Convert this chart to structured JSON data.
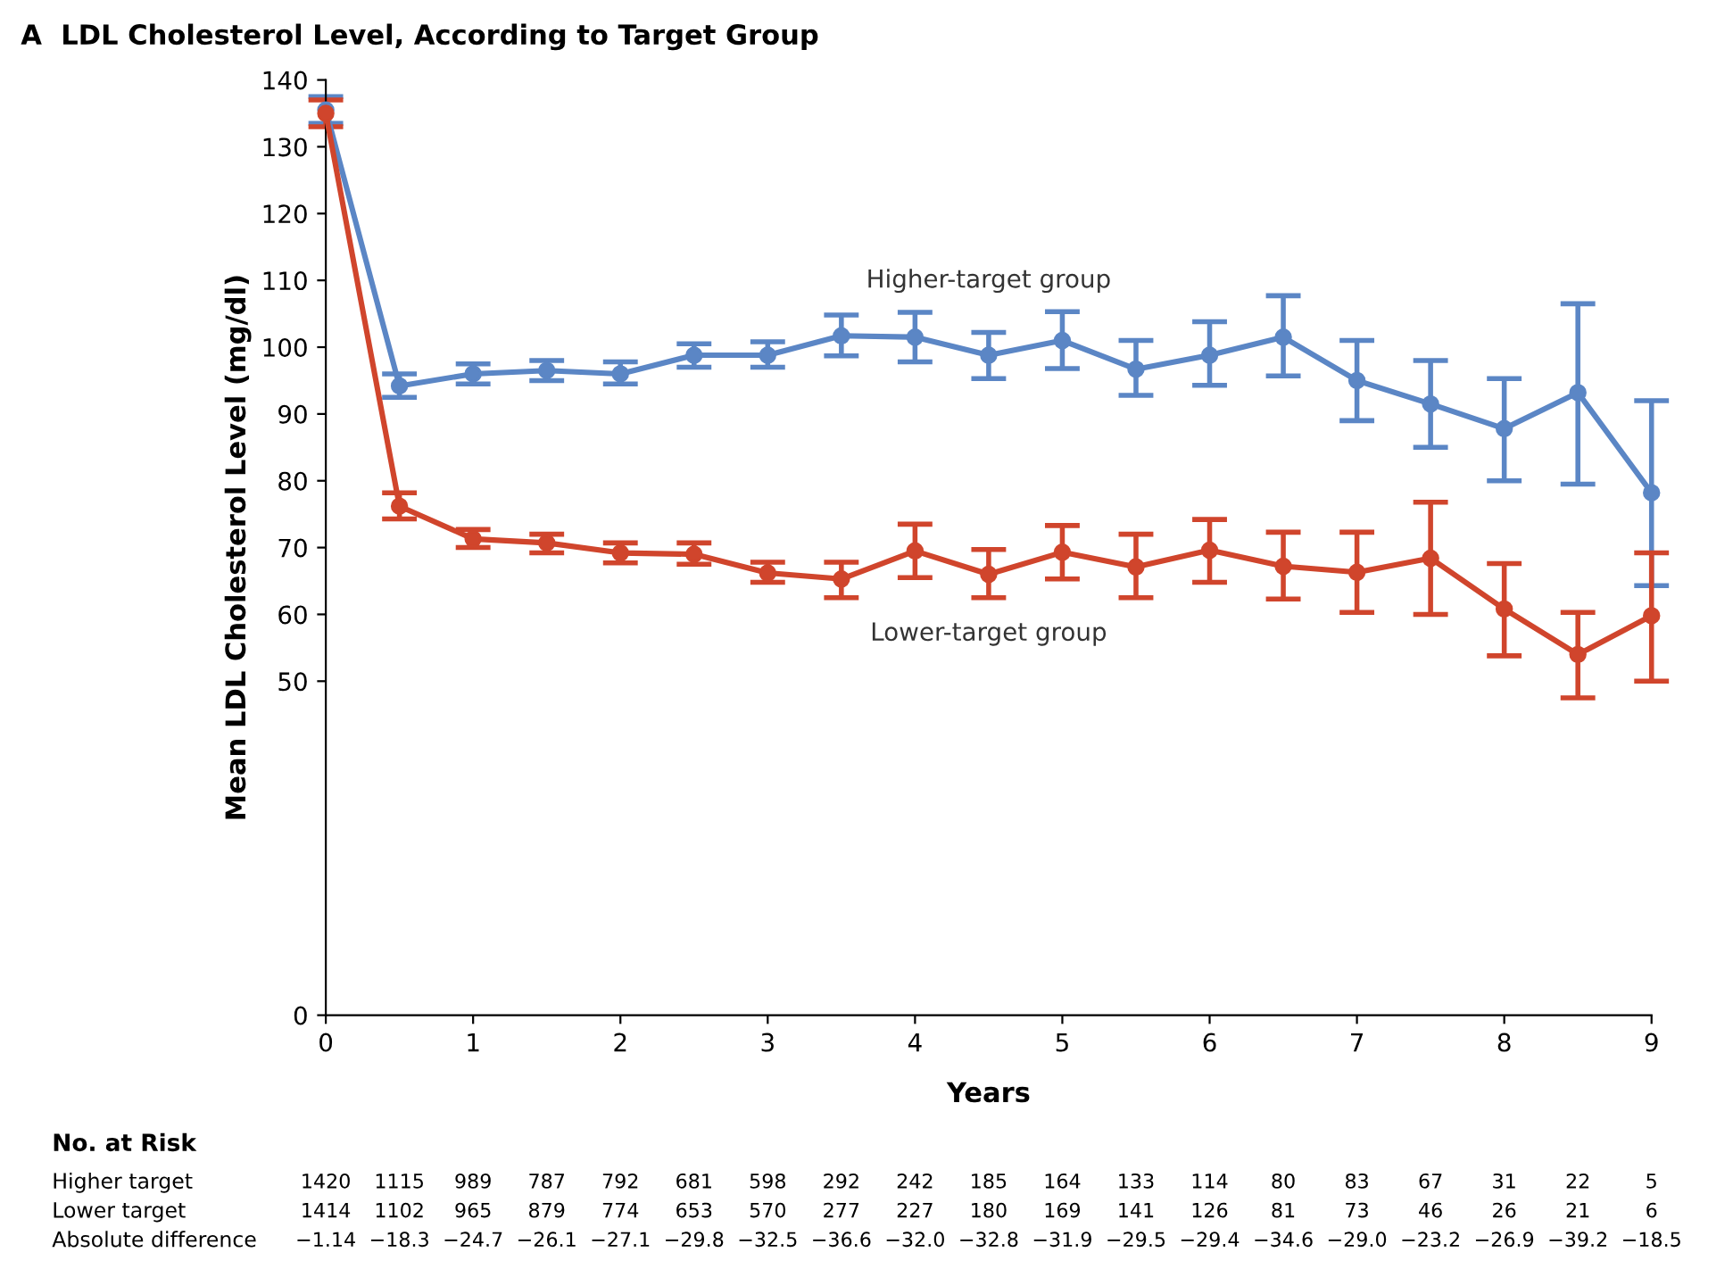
{
  "chart_data": {
    "type": "line",
    "title": "A  LDL Cholesterol Level, According to Target Group",
    "xlabel": "Years",
    "ylabel": "Mean LDL Cholesterol Level (mg/dl)",
    "x": [
      0,
      0.5,
      1,
      1.5,
      2,
      2.5,
      3,
      3.5,
      4,
      4.5,
      5,
      5.5,
      6,
      6.5,
      7,
      7.5,
      8,
      8.5,
      9
    ],
    "xlim": [
      0,
      9
    ],
    "xticks": [
      0,
      1,
      2,
      3,
      4,
      5,
      6,
      7,
      8,
      9
    ],
    "ylim": [
      0,
      140
    ],
    "yticks": [
      0,
      50,
      60,
      70,
      80,
      90,
      100,
      110,
      120,
      130,
      140
    ],
    "marker": "circle",
    "line_style": "solid",
    "grid": false,
    "legend": false,
    "series": [
      {
        "name": "Higher-target group",
        "color": "#5b86c5",
        "values": [
          135.5,
          94.2,
          96,
          96.5,
          96,
          98.8,
          98.8,
          101.7,
          101.5,
          98.8,
          101,
          96.7,
          98.8,
          101.5,
          95,
          91.5,
          87.8,
          93.2,
          78.2
        ],
        "errors": [
          [
            133.5,
            137.5
          ],
          [
            92.5,
            96
          ],
          [
            94.5,
            97.5
          ],
          [
            95,
            98
          ],
          [
            94.5,
            97.8
          ],
          [
            97,
            100.5
          ],
          [
            97,
            100.8
          ],
          [
            98.7,
            104.8
          ],
          [
            97.8,
            105.2
          ],
          [
            95.3,
            102.2
          ],
          [
            96.8,
            105.3
          ],
          [
            92.8,
            101
          ],
          [
            94.3,
            103.8
          ],
          [
            95.7,
            107.7
          ],
          [
            89,
            101
          ],
          [
            85,
            98
          ],
          [
            80,
            95.3
          ],
          [
            79.5,
            106.5
          ],
          [
            64.3,
            92
          ]
        ]
      },
      {
        "name": "Lower-target group",
        "color": "#d0452c",
        "values": [
          135,
          76.2,
          71.3,
          70.7,
          69.2,
          69,
          66.2,
          65.3,
          69.5,
          66,
          69.3,
          67.1,
          69.6,
          67.2,
          66.3,
          68.4,
          60.8,
          54,
          59.8
        ],
        "errors": [
          [
            133,
            137
          ],
          [
            74.3,
            78.2
          ],
          [
            70,
            72.7
          ],
          [
            69.2,
            72
          ],
          [
            67.7,
            70.7
          ],
          [
            67.5,
            70.7
          ],
          [
            64.8,
            67.8
          ],
          [
            62.5,
            67.8
          ],
          [
            65.5,
            73.5
          ],
          [
            62.5,
            69.7
          ],
          [
            65.3,
            73.3
          ],
          [
            62.5,
            72
          ],
          [
            64.8,
            74.2
          ],
          [
            62.3,
            72.3
          ],
          [
            60.3,
            72.3
          ],
          [
            60,
            76.8
          ],
          [
            53.8,
            67.6
          ],
          [
            47.5,
            60.3
          ],
          [
            50,
            69.2
          ]
        ]
      }
    ],
    "annotations": [
      "No. at Risk",
      "Higher target",
      "1420",
      "1115",
      "989",
      "787",
      "792",
      "681",
      "598",
      "292",
      "242",
      "185",
      "164",
      "133",
      "114",
      "80",
      "83",
      "67",
      "31",
      "22",
      "5",
      "Lower target",
      "1414",
      "1102",
      "965",
      "879",
      "774",
      "653",
      "570",
      "277",
      "227",
      "180",
      "169",
      "141",
      "126",
      "81",
      "73",
      "46",
      "26",
      "21",
      "6",
      "Absolute difference",
      "−1.14",
      "−18.3",
      "−24.7",
      "−26.1",
      "−27.1",
      "−29.8",
      "−32.5",
      "−36.6",
      "−32.0",
      "−32.8",
      "−31.9",
      "−29.5",
      "−29.4",
      "−34.6",
      "−29.0",
      "−23.2",
      "−26.9",
      "−39.2",
      "−18.5"
    ]
  }
}
